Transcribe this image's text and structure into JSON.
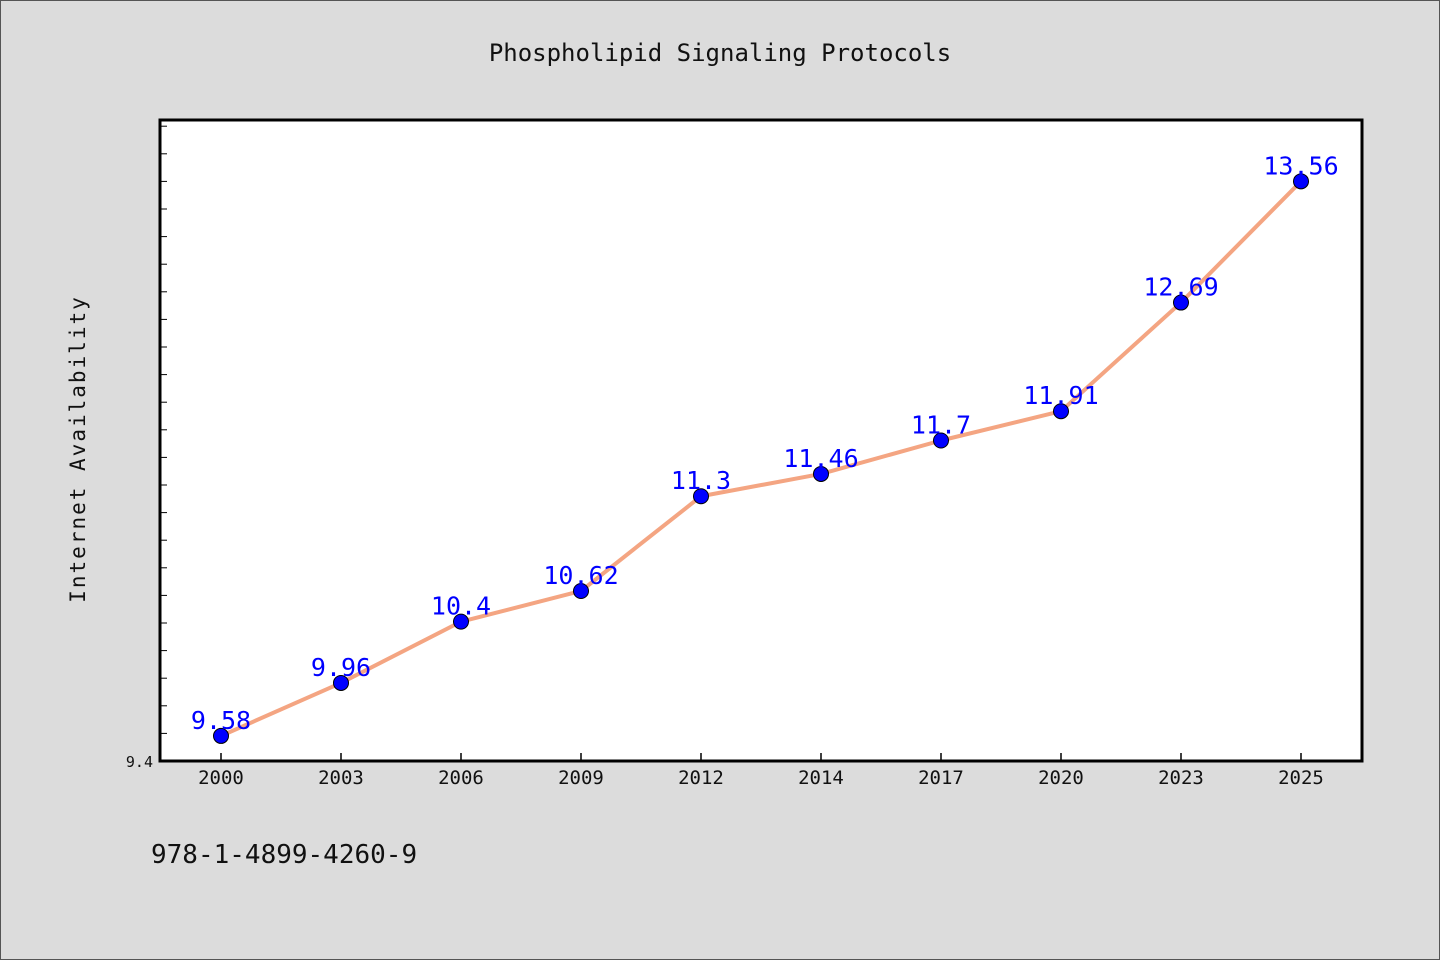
{
  "chart_data": {
    "type": "line",
    "title": "Phospholipid Signaling Protocols",
    "xlabel": "",
    "ylabel": "Internet Availability",
    "categories": [
      "2000",
      "2003",
      "2006",
      "2009",
      "2012",
      "2014",
      "2017",
      "2020",
      "2023",
      "2025"
    ],
    "series": [
      {
        "values": [
          9.58,
          9.96,
          10.4,
          10.62,
          11.3,
          11.46,
          11.7,
          11.91,
          12.69,
          13.56
        ],
        "labels": [
          "9.58",
          "9.96",
          "10.4",
          "10.62",
          "11.3",
          "11.46",
          "11.7",
          "11.91",
          "12.69",
          "13.56"
        ],
        "line_color": "#f4a582",
        "marker_color": "#0000ff"
      }
    ],
    "ylim": [
      9.4,
      14.0
    ],
    "y_tick_label": "9.4",
    "grid": false,
    "legend": "none",
    "plot_background": "#ffffff",
    "figure_background": "#dcdcdc"
  },
  "footer": {
    "isbn": "978-1-4899-4260-9"
  }
}
